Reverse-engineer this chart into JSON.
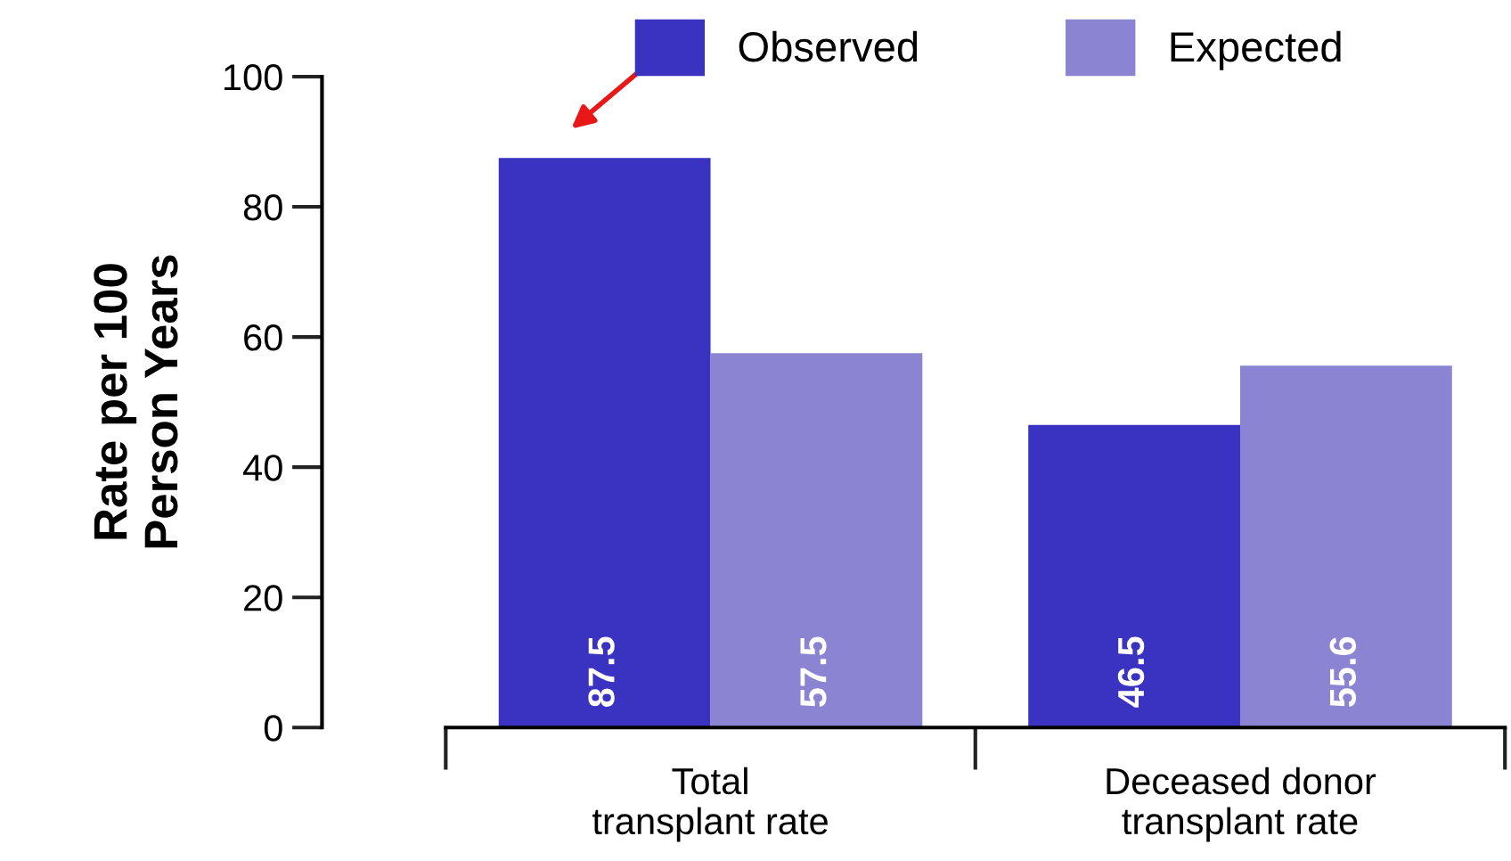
{
  "chart_data": {
    "type": "bar",
    "ylabel": "Rate per 100\nPerson Years",
    "categories": [
      "Total\ntransplant rate",
      "Deceased donor\ntransplant rate"
    ],
    "series": [
      {
        "name": "Observed",
        "color": "#3a32c0",
        "values": [
          87.5,
          46.5
        ]
      },
      {
        "name": "Expected",
        "color": "#8a84d2",
        "values": [
          57.5,
          55.6
        ]
      }
    ],
    "ylim": [
      0,
      100
    ],
    "yticks": [
      0,
      20,
      40,
      60,
      80,
      100
    ],
    "data_labels": true,
    "legend": "top",
    "grid": false
  }
}
